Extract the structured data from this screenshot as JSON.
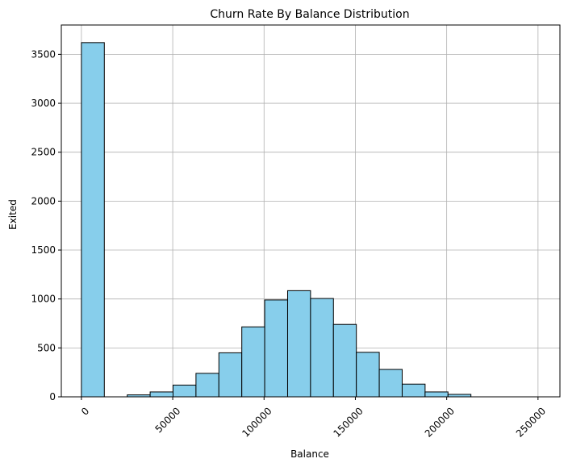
{
  "chart_data": {
    "type": "bar",
    "title": "Churn Rate By Balance Distribution",
    "xlabel": "Balance",
    "ylabel": "Exited",
    "xlim": [
      -11000,
      262000
    ],
    "ylim": [
      0,
      3800
    ],
    "x_ticks": [
      0,
      50000,
      100000,
      150000,
      200000,
      250000
    ],
    "x_tick_labels": [
      "0",
      "50000",
      "100000",
      "150000",
      "200000",
      "250000"
    ],
    "y_ticks": [
      0,
      500,
      1000,
      1500,
      2000,
      2500,
      3000,
      3500
    ],
    "y_tick_labels": [
      "0",
      "500",
      "1000",
      "1500",
      "2000",
      "2500",
      "3000",
      "3500"
    ],
    "grid": true,
    "bar_color": "#87ceeb",
    "edge_color": "#000000",
    "bin_width": 12545,
    "bins": [
      {
        "x0": 0,
        "x1": 12545,
        "value": 3620
      },
      {
        "x0": 12545,
        "x1": 25090,
        "value": 0
      },
      {
        "x0": 25090,
        "x1": 37635,
        "value": 20
      },
      {
        "x0": 37635,
        "x1": 50180,
        "value": 50
      },
      {
        "x0": 50180,
        "x1": 62725,
        "value": 120
      },
      {
        "x0": 62725,
        "x1": 75270,
        "value": 240
      },
      {
        "x0": 75270,
        "x1": 87815,
        "value": 450
      },
      {
        "x0": 87815,
        "x1": 100360,
        "value": 715
      },
      {
        "x0": 100360,
        "x1": 112905,
        "value": 990
      },
      {
        "x0": 112905,
        "x1": 125450,
        "value": 1085
      },
      {
        "x0": 125450,
        "x1": 137995,
        "value": 1005
      },
      {
        "x0": 137995,
        "x1": 150540,
        "value": 740
      },
      {
        "x0": 150540,
        "x1": 163085,
        "value": 455
      },
      {
        "x0": 163085,
        "x1": 175630,
        "value": 280
      },
      {
        "x0": 175630,
        "x1": 188175,
        "value": 130
      },
      {
        "x0": 188175,
        "x1": 200720,
        "value": 50
      },
      {
        "x0": 200720,
        "x1": 213265,
        "value": 25
      },
      {
        "x0": 213265,
        "x1": 225810,
        "value": 0
      },
      {
        "x0": 225810,
        "x1": 238355,
        "value": 0
      },
      {
        "x0": 238355,
        "x1": 250900,
        "value": 0
      }
    ]
  }
}
